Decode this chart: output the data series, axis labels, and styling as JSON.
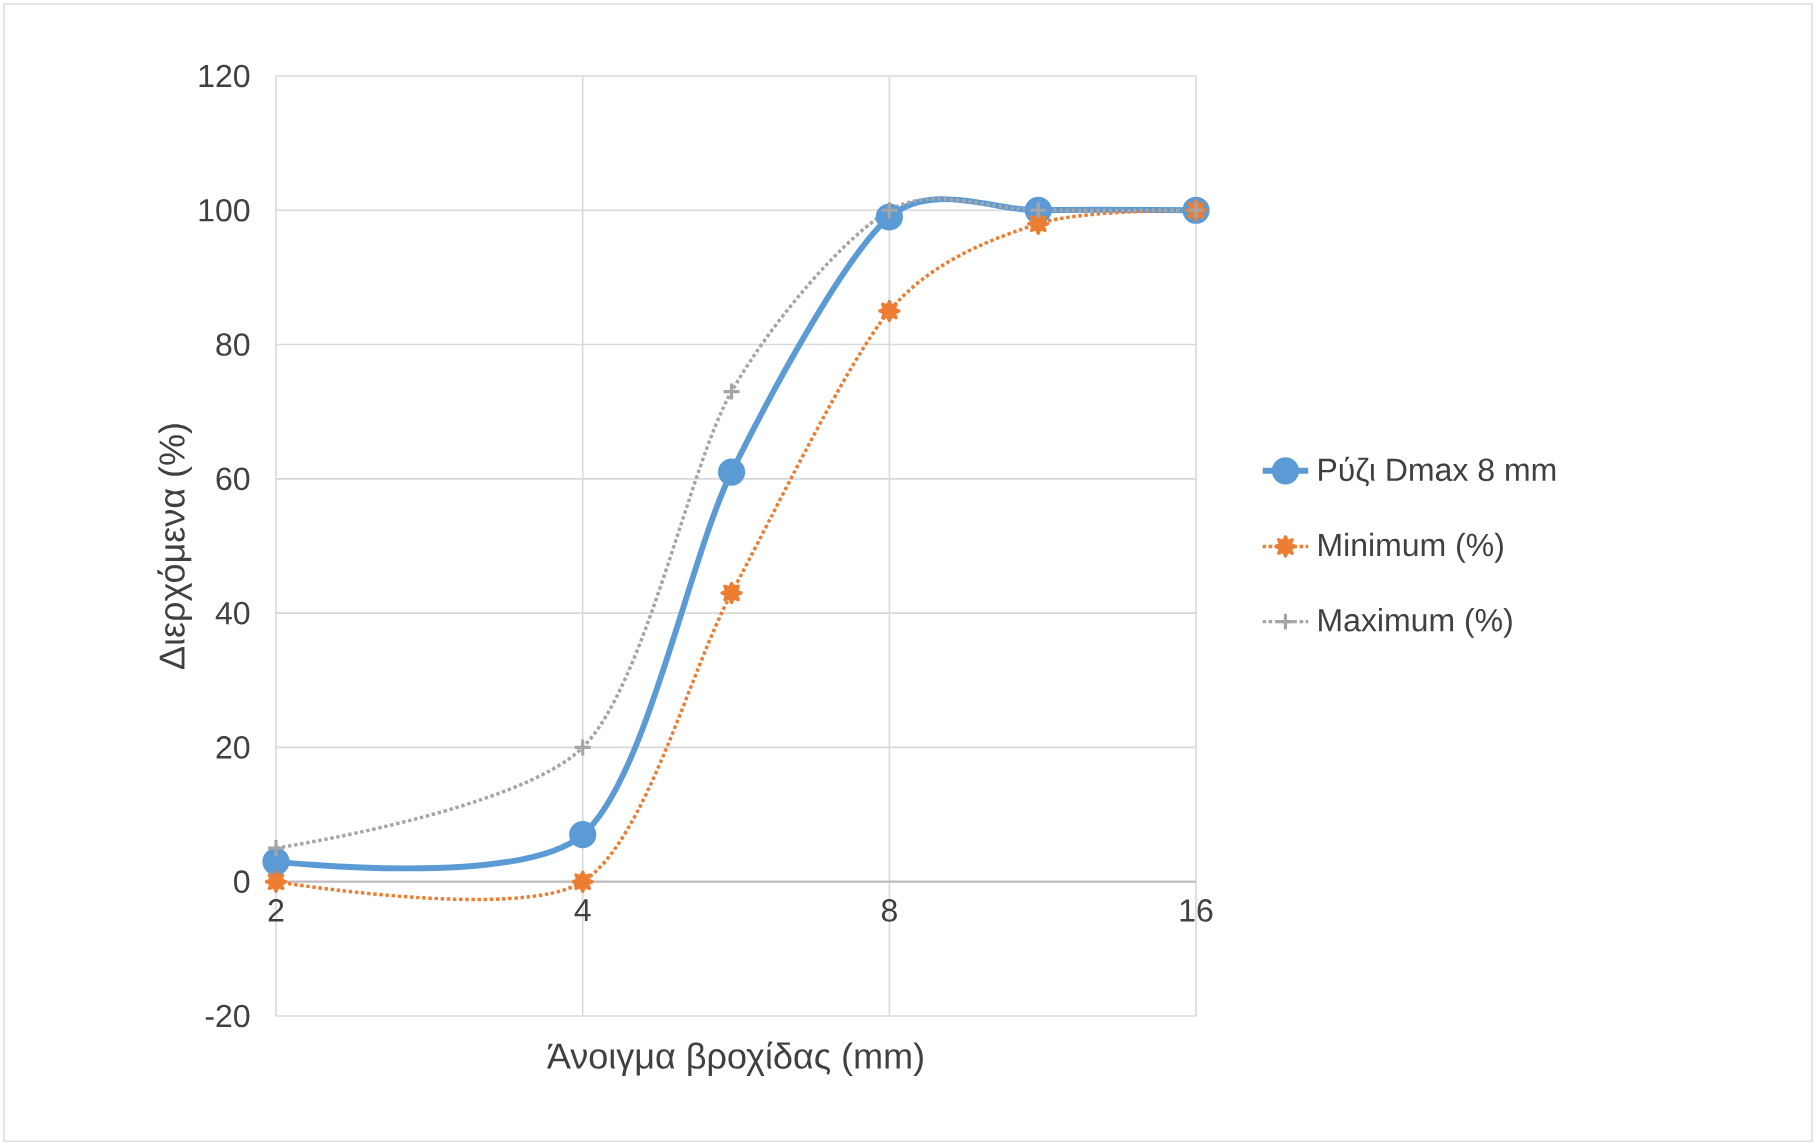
{
  "chart_data": {
    "type": "line",
    "xlabel": "Άνοιγμα βροχίδας (mm)",
    "ylabel": "Διερχόμενα (%)",
    "log": "x",
    "xlim": [
      2,
      16
    ],
    "xticks": [
      2,
      4,
      8,
      16
    ],
    "ylim": [
      -20,
      120
    ],
    "yticks": [
      -20,
      0,
      20,
      40,
      60,
      80,
      100,
      120
    ],
    "grid": true,
    "legend": "right",
    "x": [
      2,
      4,
      5.6,
      8,
      11.2,
      16
    ],
    "series": [
      {
        "name": "Ρύζι Dmax 8 mm",
        "color": "#5b9bd5",
        "values": [
          3,
          7,
          61,
          99,
          100,
          100
        ],
        "marker": "circle",
        "line_style": "solid"
      },
      {
        "name": "Minimum (%)",
        "color": "#ed7d31",
        "values": [
          0,
          0,
          43,
          85,
          98,
          100
        ],
        "marker": "star",
        "line_style": "dotted"
      },
      {
        "name": "Maximum (%)",
        "color": "#a5a5a5",
        "values": [
          5,
          20,
          73,
          100,
          100,
          100
        ],
        "marker": "cross",
        "line_style": "dotted"
      }
    ]
  }
}
